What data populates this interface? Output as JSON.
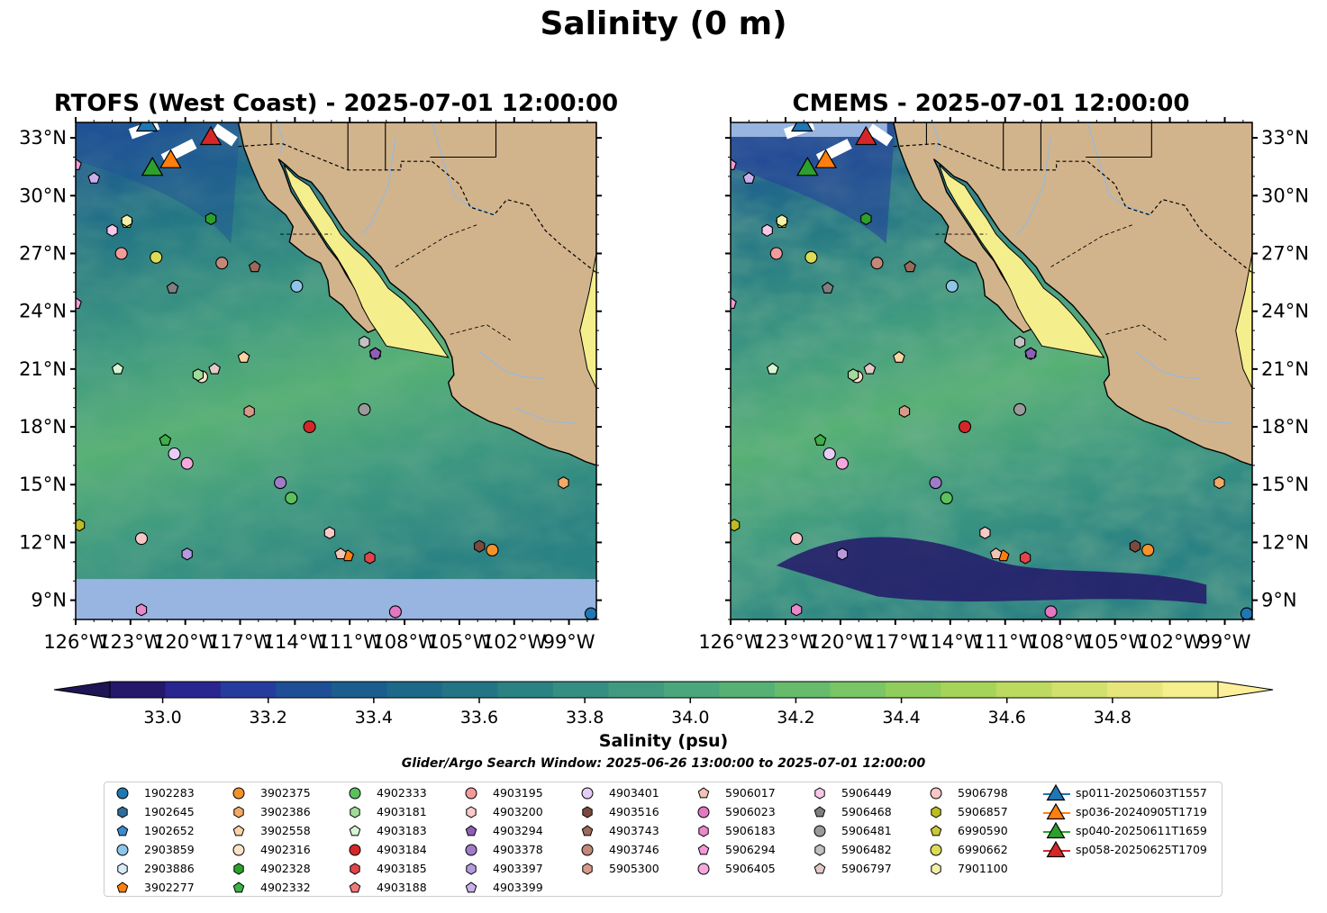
{
  "figure": {
    "suptitle": "Salinity (0 m)",
    "panels": [
      {
        "id": "rtofs",
        "title": "RTOFS (West Coast) - 2025-07-01 12:00:00",
        "nodata_band_lat": 10.1
      },
      {
        "id": "cmems",
        "title": "CMEMS - 2025-07-01 12:00:00",
        "nodata_band_lat": null
      }
    ],
    "extent": {
      "lon_min": -126,
      "lon_max": -97.5,
      "lat_min": 8,
      "lat_max": 33.8
    },
    "lon_ticks": [
      -126,
      -123,
      -120,
      -117,
      -114,
      -111,
      -108,
      -105,
      -102,
      -99
    ],
    "lon_tick_labels": [
      "126°W",
      "123°W",
      "120°W",
      "117°W",
      "114°W",
      "111°W",
      "108°W",
      "105°W",
      "102°W",
      "99°W"
    ],
    "lat_ticks": [
      9,
      12,
      15,
      18,
      21,
      24,
      27,
      30,
      33
    ],
    "lat_tick_labels": [
      "9°N",
      "12°N",
      "15°N",
      "18°N",
      "21°N",
      "24°N",
      "27°N",
      "30°N",
      "33°N"
    ],
    "colors": {
      "land": "#d2b48c",
      "nodata": "#98b4e0",
      "ocean_bg": "#3f8f88",
      "border": "#000000",
      "river": "#9db9d4"
    }
  },
  "colorbar": {
    "label": "Salinity (psu)",
    "min": 32.9,
    "max": 35.0,
    "step": 0.1,
    "ticks": [
      33.0,
      33.2,
      33.4,
      33.6,
      33.8,
      34.0,
      34.2,
      34.4,
      34.6,
      34.8
    ],
    "tick_labels": [
      "33.0",
      "33.2",
      "33.4",
      "33.6",
      "33.8",
      "34.0",
      "34.2",
      "34.4",
      "34.6",
      "34.8"
    ],
    "colors": [
      "#24186a",
      "#2a2690",
      "#263c9c",
      "#1e4f96",
      "#1b5d8d",
      "#1d6a88",
      "#237585",
      "#2b8283",
      "#358e82",
      "#3f9a80",
      "#4aa67c",
      "#57b174",
      "#66bc6c",
      "#7ac564",
      "#90cd5c",
      "#a6d45a",
      "#bcda5f",
      "#d2e06e",
      "#e6e67d",
      "#f5ee8c"
    ],
    "under_color": "#1e1556",
    "over_color": "#fef09a"
  },
  "search_window": "Glider/Argo Search Window: 2025-06-26 13:00:00 to 2025-07-01 12:00:00",
  "legend": [
    {
      "label": "1902283",
      "marker": "circle",
      "color": "#1f77b4"
    },
    {
      "label": "1902645",
      "marker": "hexagon",
      "color": "#2f6d9a"
    },
    {
      "label": "1902652",
      "marker": "pentagon",
      "color": "#3a8cd0"
    },
    {
      "label": "2903859",
      "marker": "circle",
      "color": "#8ec6ea"
    },
    {
      "label": "2903886",
      "marker": "hexagon",
      "color": "#d8ecf8"
    },
    {
      "label": "3902277",
      "marker": "pentagon",
      "color": "#ff7f0e"
    },
    {
      "label": "3902375",
      "marker": "circle",
      "color": "#f5922a"
    },
    {
      "label": "3902386",
      "marker": "hexagon",
      "color": "#f2aa68"
    },
    {
      "label": "3902558",
      "marker": "pentagon",
      "color": "#fbd3a4"
    },
    {
      "label": "4902316",
      "marker": "circle",
      "color": "#fde3c6"
    },
    {
      "label": "4902328",
      "marker": "hexagon",
      "color": "#2ca02c"
    },
    {
      "label": "4902332",
      "marker": "pentagon",
      "color": "#3eb048"
    },
    {
      "label": "4902333",
      "marker": "circle",
      "color": "#5cc15c"
    },
    {
      "label": "4903181",
      "marker": "hexagon",
      "color": "#9fdc9b"
    },
    {
      "label": "4903183",
      "marker": "pentagon",
      "color": "#d6f5d2"
    },
    {
      "label": "4903184",
      "marker": "circle",
      "color": "#d62728"
    },
    {
      "label": "4903185",
      "marker": "hexagon",
      "color": "#e0454a"
    },
    {
      "label": "4903188",
      "marker": "pentagon",
      "color": "#f07a7a"
    },
    {
      "label": "4903195",
      "marker": "circle",
      "color": "#f29b9b"
    },
    {
      "label": "4903200",
      "marker": "hexagon",
      "color": "#f9c9c8"
    },
    {
      "label": "4903294",
      "marker": "pentagon",
      "color": "#8e5fb8"
    },
    {
      "label": "4903378",
      "marker": "circle",
      "color": "#a07cc8"
    },
    {
      "label": "4903397",
      "marker": "hexagon",
      "color": "#b59ae0"
    },
    {
      "label": "4903399",
      "marker": "pentagon",
      "color": "#c9b0ec"
    },
    {
      "label": "4903401",
      "marker": "circle",
      "color": "#e6ccf6"
    },
    {
      "label": "4903516",
      "marker": "hexagon",
      "color": "#7a4a3e"
    },
    {
      "label": "4903743",
      "marker": "pentagon",
      "color": "#9b6a5a"
    },
    {
      "label": "4903746",
      "marker": "circle",
      "color": "#c48878"
    },
    {
      "label": "5905300",
      "marker": "hexagon",
      "color": "#d79a8a"
    },
    {
      "label": "5906017",
      "marker": "pentagon",
      "color": "#f2c4b6"
    },
    {
      "label": "5906023",
      "marker": "circle",
      "color": "#e377c2"
    },
    {
      "label": "5906183",
      "marker": "hexagon",
      "color": "#eb87cc"
    },
    {
      "label": "5906294",
      "marker": "pentagon",
      "color": "#f39ad6"
    },
    {
      "label": "5906405",
      "marker": "circle",
      "color": "#f5a8de"
    },
    {
      "label": "5906449",
      "marker": "hexagon",
      "color": "#f8c8ea"
    },
    {
      "label": "5906468",
      "marker": "pentagon",
      "color": "#7f7f7f"
    },
    {
      "label": "5906481",
      "marker": "circle",
      "color": "#9a9a9a"
    },
    {
      "label": "5906482",
      "marker": "hexagon",
      "color": "#c2c2c2"
    },
    {
      "label": "5906797",
      "marker": "pentagon",
      "color": "#e4c9c9"
    },
    {
      "label": "5906798",
      "marker": "circle",
      "color": "#f7c6c6"
    },
    {
      "label": "5906857",
      "marker": "hexagon",
      "color": "#bcbd22"
    },
    {
      "label": "6990590",
      "marker": "pentagon",
      "color": "#c8c83a"
    },
    {
      "label": "6990662",
      "marker": "circle",
      "color": "#dbdb55"
    },
    {
      "label": "7901100",
      "marker": "hexagon",
      "color": "#f0f0a8"
    },
    {
      "label": "sp011-20250603T1557",
      "marker": "triangle-line",
      "color": "#1f77b4"
    },
    {
      "label": "sp036-20240905T1719",
      "marker": "triangle-line",
      "color": "#ff7f0e"
    },
    {
      "label": "sp040-20250611T1659",
      "marker": "triangle-line",
      "color": "#2ca02c"
    },
    {
      "label": "sp058-20250625T1709",
      "marker": "triangle-line",
      "color": "#d62728"
    }
  ],
  "observations": [
    {
      "label": "1902283",
      "lon": -97.8,
      "lat": 8.3
    },
    {
      "label": "1902645",
      "lon": -109.6,
      "lat": 21.8
    },
    {
      "label": "2903859",
      "lon": -113.9,
      "lat": 25.3
    },
    {
      "label": "3902277",
      "lon": -111.1,
      "lat": 11.3
    },
    {
      "label": "3902375",
      "lon": -103.2,
      "lat": 11.6
    },
    {
      "label": "3902386",
      "lon": -99.3,
      "lat": 15.1
    },
    {
      "label": "3902558",
      "lon": -116.8,
      "lat": 21.6
    },
    {
      "label": "4902316",
      "lon": -119.1,
      "lat": 20.6
    },
    {
      "label": "4902328",
      "lon": -118.6,
      "lat": 28.8
    },
    {
      "label": "4902332",
      "lon": -121.1,
      "lat": 17.3
    },
    {
      "label": "4902333",
      "lon": -114.2,
      "lat": 14.3
    },
    {
      "label": "4903181",
      "lon": -119.3,
      "lat": 20.7
    },
    {
      "label": "4903183",
      "lon": -123.7,
      "lat": 21.0
    },
    {
      "label": "4903184",
      "lon": -113.2,
      "lat": 18.0
    },
    {
      "label": "4903185",
      "lon": -109.9,
      "lat": 11.2
    },
    {
      "label": "4903195",
      "lon": -123.5,
      "lat": 27.0
    },
    {
      "label": "4903200",
      "lon": -112.1,
      "lat": 12.5
    },
    {
      "label": "4903294",
      "lon": -109.6,
      "lat": 21.8
    },
    {
      "label": "4903378",
      "lon": -114.8,
      "lat": 15.1
    },
    {
      "label": "4903397",
      "lon": -119.9,
      "lat": 11.4
    },
    {
      "label": "4903399",
      "lon": -125.0,
      "lat": 30.9
    },
    {
      "label": "4903401",
      "lon": -120.6,
      "lat": 16.6
    },
    {
      "label": "4903516",
      "lon": -103.9,
      "lat": 11.8
    },
    {
      "label": "4903743",
      "lon": -116.2,
      "lat": 26.3
    },
    {
      "label": "4903746",
      "lon": -118.0,
      "lat": 26.5
    },
    {
      "label": "5905300",
      "lon": -116.5,
      "lat": 18.8
    },
    {
      "label": "5906017",
      "lon": -111.5,
      "lat": 11.4
    },
    {
      "label": "5906023",
      "lon": -108.5,
      "lat": 8.4
    },
    {
      "label": "5906183",
      "lon": -122.4,
      "lat": 8.5
    },
    {
      "label": "5906294",
      "lon": -126.0,
      "lat": 31.6
    },
    {
      "label": "5906405",
      "lon": -119.9,
      "lat": 16.1
    },
    {
      "label": "5906449",
      "lon": -124.0,
      "lat": 28.2
    },
    {
      "label": "5906468",
      "lon": -120.7,
      "lat": 25.2
    },
    {
      "label": "5906481",
      "lon": -110.2,
      "lat": 18.9
    },
    {
      "label": "5906482",
      "lon": -110.2,
      "lat": 22.4
    },
    {
      "label": "5906797",
      "lon": -118.4,
      "lat": 21.0
    },
    {
      "label": "5906798",
      "lon": -122.4,
      "lat": 12.2
    },
    {
      "label": "5906857",
      "lon": -125.8,
      "lat": 12.9
    },
    {
      "label": "6990590",
      "lon": -123.2,
      "lat": 28.6
    },
    {
      "label": "6990662",
      "lon": -121.6,
      "lat": 26.8
    },
    {
      "label": "7901100",
      "lon": -123.2,
      "lat": 28.7
    },
    {
      "label": "5906294",
      "lon": -126.0,
      "lat": 24.4
    }
  ],
  "glider_tracks": [
    {
      "label": "sp011-20250603T1557",
      "lon": -122.1,
      "lat": 33.8
    },
    {
      "label": "sp036-20240905T1719",
      "lon": -120.8,
      "lat": 31.9
    },
    {
      "label": "sp040-20250611T1659",
      "lon": -121.8,
      "lat": 31.5
    },
    {
      "label": "sp058-20250625T1709",
      "lon": -118.6,
      "lat": 33.1
    }
  ]
}
